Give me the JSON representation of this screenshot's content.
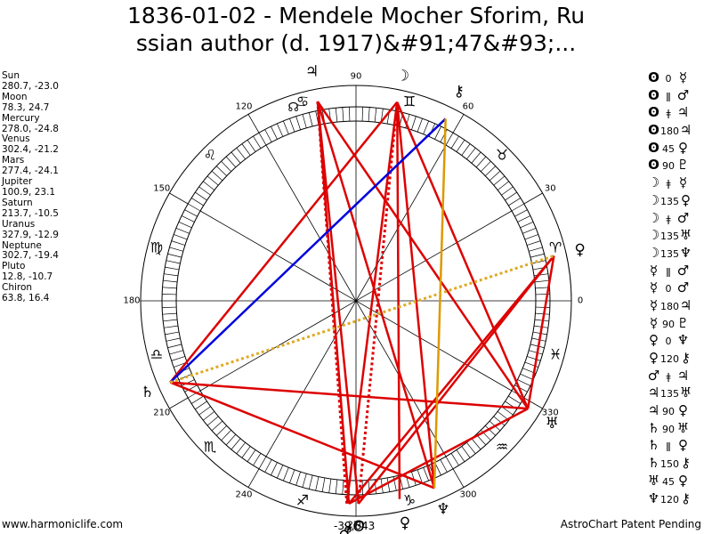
{
  "title": {
    "line1": "1836-01-02 - Mendele Mocher Sforim, Ru",
    "line2": "ssian author (d. 1917)&#91;47&#93;..."
  },
  "planets": [
    {
      "name": "Sun",
      "coords": "280.7, -23.0"
    },
    {
      "name": "Moon",
      "coords": "78.3, 24.7"
    },
    {
      "name": "Mercury",
      "coords": "278.0, -24.8"
    },
    {
      "name": "Venus",
      "coords": "302.4, -21.2"
    },
    {
      "name": "Mars",
      "coords": "277.4, -24.1"
    },
    {
      "name": "Jupiter",
      "coords": "100.9, 23.1"
    },
    {
      "name": "Saturn",
      "coords": "213.7, -10.5"
    },
    {
      "name": "Uranus",
      "coords": "327.9, -12.9"
    },
    {
      "name": "Neptune",
      "coords": "302.7, -19.4"
    },
    {
      "name": "Pluto",
      "coords": "12.8, -10.7"
    },
    {
      "name": "Chiron",
      "coords": "63.8, 16.4"
    }
  ],
  "aspects": [
    {
      "p1": "ʘ",
      "value": "0",
      "p2": "☿"
    },
    {
      "p1": "ʘ",
      "value": "ǁ",
      "p2": "♂"
    },
    {
      "p1": "ʘ",
      "value": "ǂ",
      "p2": "♃"
    },
    {
      "p1": "ʘ",
      "value": "180",
      "p2": "♃"
    },
    {
      "p1": "ʘ",
      "value": "45",
      "p2": "♀"
    },
    {
      "p1": "ʘ",
      "value": "90",
      "p2": "♇"
    },
    {
      "p1": "☽",
      "value": "ǂ",
      "p2": "☿"
    },
    {
      "p1": "☽",
      "value": "135",
      "p2": "♀"
    },
    {
      "p1": "☽",
      "value": "ǂ",
      "p2": "♂"
    },
    {
      "p1": "☽",
      "value": "135",
      "p2": "♅"
    },
    {
      "p1": "☽",
      "value": "135",
      "p2": "♆"
    },
    {
      "p1": "☿",
      "value": "ǁ",
      "p2": "♂"
    },
    {
      "p1": "☿",
      "value": "0",
      "p2": "♂"
    },
    {
      "p1": "☿",
      "value": "180",
      "p2": "♃"
    },
    {
      "p1": "☿",
      "value": "90",
      "p2": "♇"
    },
    {
      "p1": "♀",
      "value": "0",
      "p2": "♆"
    },
    {
      "p1": "♀",
      "value": "120",
      "p2": "⚷"
    },
    {
      "p1": "♂",
      "value": "ǂ",
      "p2": "♃"
    },
    {
      "p1": "♃",
      "value": "135",
      "p2": "♅"
    },
    {
      "p1": "♃",
      "value": "90",
      "p2": "♀"
    },
    {
      "p1": "♄",
      "value": "90",
      "p2": "♅"
    },
    {
      "p1": "♄",
      "value": "ǁ",
      "p2": "♀"
    },
    {
      "p1": "♄",
      "value": "150",
      "p2": "⚷"
    },
    {
      "p1": "♅",
      "value": "45",
      "p2": "♀"
    },
    {
      "p1": "♆",
      "value": "120",
      "p2": "⚷"
    }
  ],
  "wheel": {
    "degree_labels": [
      "0",
      "30",
      "60",
      "90",
      "120",
      "150",
      "180",
      "210",
      "240",
      "270",
      "300",
      "330"
    ],
    "zodiac_signs": [
      "♈",
      "♉",
      "♊",
      "♋",
      "♌",
      "♍",
      "♎",
      "♏",
      "♐",
      "♑",
      "♒",
      "♓"
    ],
    "center_label": "-39,643",
    "planet_glyphs": {
      "sun": "ʘ",
      "moon": "☽",
      "mercury": "☿",
      "venus": "♀",
      "mars": "♂",
      "jupiter": "♃",
      "saturn": "♄",
      "uranus": "♅",
      "neptune": "♆",
      "pluto": "♀",
      "chiron": "⚷",
      "node": "☊"
    },
    "colors": {
      "square": "#dd0000",
      "trine": "#0000dd",
      "sextile": "#dd9900",
      "quincunx": "#ddaa22",
      "ring": "#000000"
    }
  },
  "footer": {
    "left": "www.harmoniclife.com",
    "right": "AstroChart Patent Pending"
  }
}
